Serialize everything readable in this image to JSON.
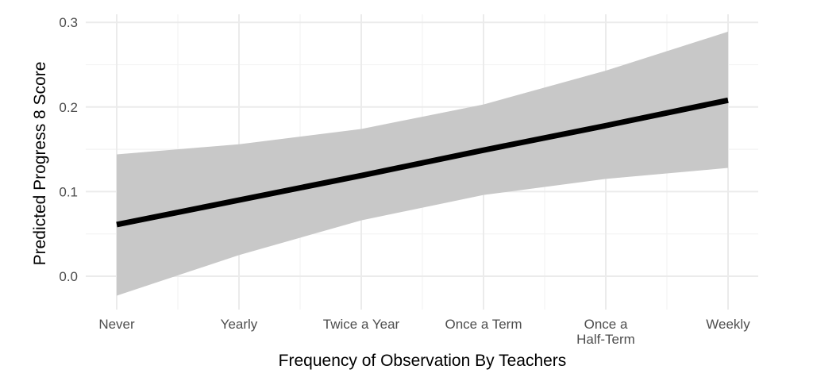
{
  "chart_data": {
    "type": "line",
    "xlabel": "Frequency of Observation By Teachers",
    "ylabel": "Predicted Progress 8 Score",
    "categories": [
      [
        "Never"
      ],
      [
        "Yearly"
      ],
      [
        "Twice a Year"
      ],
      [
        "Once a Term"
      ],
      [
        "Once a",
        "Half-Term"
      ],
      [
        "Weekly"
      ]
    ],
    "x": [
      0,
      1,
      2,
      3,
      4,
      5
    ],
    "y": [
      0.061,
      0.09,
      0.119,
      0.149,
      0.178,
      0.208
    ],
    "ci_lower": [
      -0.023,
      0.025,
      0.066,
      0.096,
      0.115,
      0.128
    ],
    "ci_upper": [
      0.144,
      0.156,
      0.174,
      0.203,
      0.243,
      0.289
    ],
    "ylim": [
      -0.04,
      0.3
    ],
    "yticks": [
      "0.0",
      "0.1",
      "0.2",
      "0.3"
    ],
    "ytick_values": [
      0,
      0.1,
      0.2,
      0.3
    ],
    "grid": true,
    "colors": {
      "line": "#000000",
      "ribbon": "#c8c8c8",
      "grid_major": "#ebebeb",
      "grid_minor": "#f3f3f3"
    }
  }
}
